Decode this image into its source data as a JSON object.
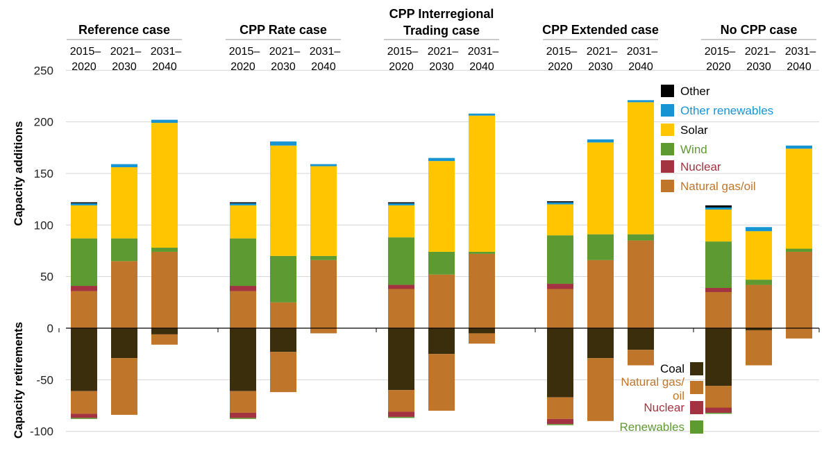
{
  "chart_data": {
    "type": "bar",
    "stacked": true,
    "ylabel_top": "Capacity additions",
    "ylabel_bottom": "Capacity retirements",
    "ylim": [
      -100,
      250
    ],
    "yticks": [
      250,
      200,
      150,
      100,
      50,
      0,
      -50,
      -100
    ],
    "grid": true,
    "cases": [
      {
        "title_lines": [
          "Reference case"
        ],
        "periods": [
          {
            "top": "2015–",
            "bottom": "2020",
            "add": {
              "natural_gas_oil": 36,
              "nuclear": 5,
              "wind": 46,
              "solar": 32,
              "other_renewables": 2,
              "other": 1
            },
            "ret": {
              "coal": 61,
              "natural_gas_oil": 22,
              "nuclear": 4,
              "renewables": 1
            }
          },
          {
            "top": "2021–",
            "bottom": "2030",
            "add": {
              "natural_gas_oil": 65,
              "nuclear": 0,
              "wind": 22,
              "solar": 69,
              "other_renewables": 3,
              "other": 0
            },
            "ret": {
              "coal": 29,
              "natural_gas_oil": 55,
              "nuclear": 0,
              "renewables": 0
            }
          },
          {
            "top": "2031–",
            "bottom": "2040",
            "add": {
              "natural_gas_oil": 74,
              "nuclear": 0,
              "wind": 4,
              "solar": 121,
              "other_renewables": 3,
              "other": 0
            },
            "ret": {
              "coal": 6,
              "natural_gas_oil": 10,
              "nuclear": 0,
              "renewables": 0
            }
          }
        ]
      },
      {
        "title_lines": [
          "CPP Rate case"
        ],
        "periods": [
          {
            "top": "2015–",
            "bottom": "2020",
            "add": {
              "natural_gas_oil": 36,
              "nuclear": 5,
              "wind": 46,
              "solar": 32,
              "other_renewables": 2,
              "other": 1
            },
            "ret": {
              "coal": 61,
              "natural_gas_oil": 21,
              "nuclear": 5,
              "renewables": 1
            }
          },
          {
            "top": "2021–",
            "bottom": "2030",
            "add": {
              "natural_gas_oil": 25,
              "nuclear": 0,
              "wind": 45,
              "solar": 107,
              "other_renewables": 4,
              "other": 0
            },
            "ret": {
              "coal": 23,
              "natural_gas_oil": 39,
              "nuclear": 0,
              "renewables": 0
            }
          },
          {
            "top": "2031–",
            "bottom": "2040",
            "add": {
              "natural_gas_oil": 66,
              "nuclear": 0,
              "wind": 4,
              "solar": 87,
              "other_renewables": 2,
              "other": 0
            },
            "ret": {
              "coal": 0,
              "natural_gas_oil": 5,
              "nuclear": 0,
              "renewables": 0
            }
          }
        ]
      },
      {
        "title_lines": [
          "CPP Interregional",
          "Trading case"
        ],
        "periods": [
          {
            "top": "2015–",
            "bottom": "2020",
            "add": {
              "natural_gas_oil": 38,
              "nuclear": 4,
              "wind": 46,
              "solar": 31,
              "other_renewables": 2,
              "other": 1
            },
            "ret": {
              "coal": 60,
              "natural_gas_oil": 21,
              "nuclear": 5,
              "renewables": 1
            }
          },
          {
            "top": "2021–",
            "bottom": "2030",
            "add": {
              "natural_gas_oil": 52,
              "nuclear": 0,
              "wind": 22,
              "solar": 88,
              "other_renewables": 3,
              "other": 0
            },
            "ret": {
              "coal": 25,
              "natural_gas_oil": 55,
              "nuclear": 0,
              "renewables": 0
            }
          },
          {
            "top": "2031–",
            "bottom": "2040",
            "add": {
              "natural_gas_oil": 72,
              "nuclear": 0,
              "wind": 2,
              "solar": 132,
              "other_renewables": 2,
              "other": 0
            },
            "ret": {
              "coal": 5,
              "natural_gas_oil": 10,
              "nuclear": 0,
              "renewables": 0
            }
          }
        ]
      },
      {
        "title_lines": [
          "CPP Extended case"
        ],
        "periods": [
          {
            "top": "2015–",
            "bottom": "2020",
            "add": {
              "natural_gas_oil": 38,
              "nuclear": 5,
              "wind": 47,
              "solar": 30,
              "other_renewables": 2,
              "other": 1
            },
            "ret": {
              "coal": 67,
              "natural_gas_oil": 21,
              "nuclear": 5,
              "renewables": 1
            }
          },
          {
            "top": "2021–",
            "bottom": "2030",
            "add": {
              "natural_gas_oil": 66,
              "nuclear": 0,
              "wind": 25,
              "solar": 89,
              "other_renewables": 3,
              "other": 0
            },
            "ret": {
              "coal": 29,
              "natural_gas_oil": 61,
              "nuclear": 0,
              "renewables": 0
            }
          },
          {
            "top": "2031–",
            "bottom": "2040",
            "add": {
              "natural_gas_oil": 85,
              "nuclear": 0,
              "wind": 6,
              "solar": 128,
              "other_renewables": 2,
              "other": 0
            },
            "ret": {
              "coal": 21,
              "natural_gas_oil": 15,
              "nuclear": 0,
              "renewables": 0
            }
          }
        ]
      },
      {
        "title_lines": [
          "No CPP case"
        ],
        "periods": [
          {
            "top": "2015–",
            "bottom": "2020",
            "add": {
              "natural_gas_oil": 35,
              "nuclear": 4,
              "wind": 45,
              "solar": 31,
              "other_renewables": 2,
              "other": 2
            },
            "ret": {
              "coal": 56,
              "natural_gas_oil": 21,
              "nuclear": 5,
              "renewables": 1
            }
          },
          {
            "top": "2021–",
            "bottom": "2030",
            "add": {
              "natural_gas_oil": 42,
              "nuclear": 0,
              "wind": 5,
              "solar": 47,
              "other_renewables": 4,
              "other": 0
            },
            "ret": {
              "coal": 2,
              "natural_gas_oil": 34,
              "nuclear": 0,
              "renewables": 0
            }
          },
          {
            "top": "2031–",
            "bottom": "2040",
            "add": {
              "natural_gas_oil": 74,
              "nuclear": 0,
              "wind": 3,
              "solar": 97,
              "other_renewables": 3,
              "other": 0
            },
            "ret": {
              "coal": 0,
              "natural_gas_oil": 10,
              "nuclear": 0,
              "renewables": 0
            }
          }
        ]
      }
    ],
    "legend_additions": [
      {
        "key": "other",
        "label_lines": [
          "Other"
        ],
        "color": "#000000",
        "text_color": "#000000"
      },
      {
        "key": "other_renewables",
        "label_lines": [
          "Other renewables"
        ],
        "color": "#1795D3",
        "text_color": "#1795D3"
      },
      {
        "key": "solar",
        "label_lines": [
          "Solar"
        ],
        "color": "#FFC600",
        "text_color": "#000000"
      },
      {
        "key": "wind",
        "label_lines": [
          "Wind"
        ],
        "color": "#5E9A32",
        "text_color": "#5E9A32"
      },
      {
        "key": "nuclear",
        "label_lines": [
          "Nuclear"
        ],
        "color": "#A33340",
        "text_color": "#A33340"
      },
      {
        "key": "natural_gas_oil",
        "label_lines": [
          "Natural gas/oil"
        ],
        "color": "#BF762B",
        "text_color": "#BF762B"
      }
    ],
    "legend_retirements": [
      {
        "key": "coal",
        "label_lines": [
          "Coal"
        ],
        "color": "#3B2E0C",
        "text_color": "#000000"
      },
      {
        "key": "natural_gas_oil",
        "label_lines": [
          "Natural gas/",
          "oil"
        ],
        "color": "#BF762B",
        "text_color": "#BF762B"
      },
      {
        "key": "nuclear",
        "label_lines": [
          "Nuclear"
        ],
        "color": "#A33340",
        "text_color": "#A33340"
      },
      {
        "key": "renewables",
        "label_lines": [
          "Renewables"
        ],
        "color": "#5E9A32",
        "text_color": "#5E9A32"
      }
    ]
  }
}
